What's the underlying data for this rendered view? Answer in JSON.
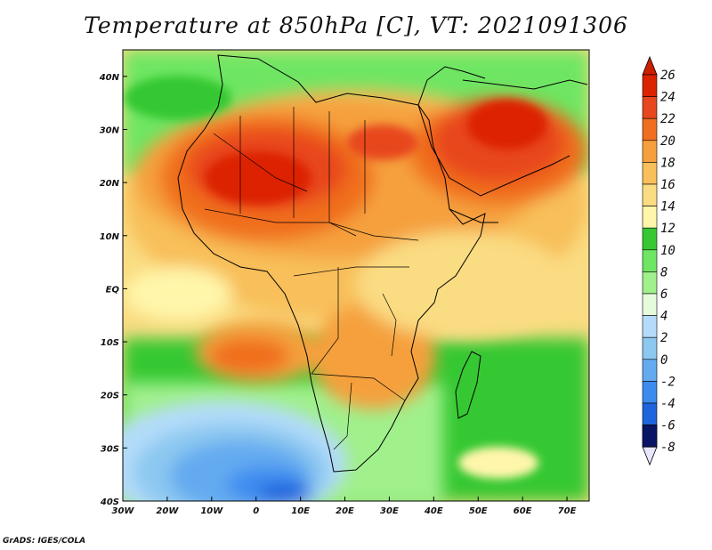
{
  "title": "Temperature at 850hPa [C], VT: 2021091306",
  "credit": "GrADS: IGES/COLA",
  "map": {
    "lon_ticks": [
      "30W",
      "20W",
      "10W",
      "0",
      "10E",
      "20E",
      "30E",
      "40E",
      "50E",
      "60E",
      "70E"
    ],
    "lat_ticks": [
      "40N",
      "30N",
      "20N",
      "10N",
      "EQ",
      "10S",
      "20S",
      "30S",
      "40S"
    ],
    "lon_range": [
      -30,
      75
    ],
    "lat_range": [
      -40,
      45
    ]
  },
  "colorbar": {
    "labels": [
      "26",
      "24",
      "22",
      "20",
      "18",
      "16",
      "14",
      "12",
      "10",
      "8",
      "6",
      "4",
      "2",
      "0",
      "-2",
      "-4",
      "-6",
      "-8"
    ],
    "colors": [
      "#dc2300",
      "#e8461e",
      "#f06e1e",
      "#f5a03c",
      "#f8bf5a",
      "#fadc82",
      "#fff6aa",
      "#36c832",
      "#6ee664",
      "#a0f08c",
      "#e6fadc",
      "#b4dcfa",
      "#8cc8f0",
      "#64aaf0",
      "#3c8cf0",
      "#1e64dc",
      "#1e3cb4",
      "#0a1464"
    ],
    "top_color": "#ce1e00",
    "bottom_color": "#e6e6ff"
  }
}
